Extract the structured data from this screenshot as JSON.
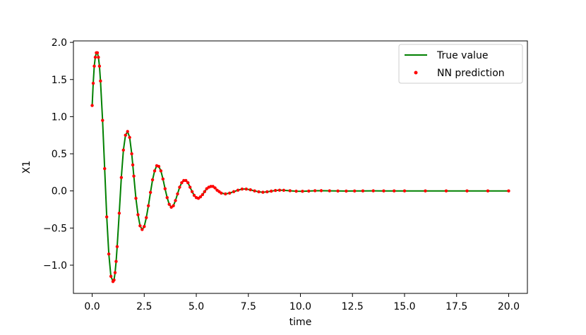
{
  "chart_data": {
    "type": "line",
    "title": "",
    "xlabel": "time",
    "ylabel": "X1",
    "xlim": [
      -0.9,
      20.9
    ],
    "ylim": [
      -1.38,
      2.02
    ],
    "x_ticks": [
      {
        "value": 0.0,
        "label": "0.0"
      },
      {
        "value": 2.5,
        "label": "2.5"
      },
      {
        "value": 5.0,
        "label": "5.0"
      },
      {
        "value": 7.5,
        "label": "7.5"
      },
      {
        "value": 10.0,
        "label": "10.0"
      },
      {
        "value": 12.5,
        "label": "12.5"
      },
      {
        "value": 15.0,
        "label": "15.0"
      },
      {
        "value": 17.5,
        "label": "17.5"
      },
      {
        "value": 20.0,
        "label": "20.0"
      }
    ],
    "y_ticks": [
      {
        "value": -1.0,
        "label": "−1.0"
      },
      {
        "value": -0.5,
        "label": "−0.5"
      },
      {
        "value": 0.0,
        "label": "0.0"
      },
      {
        "value": 0.5,
        "label": "0.5"
      },
      {
        "value": 1.0,
        "label": "1.0"
      },
      {
        "value": 1.5,
        "label": "1.5"
      },
      {
        "value": 2.0,
        "label": "2.0"
      }
    ],
    "grid": false,
    "legend_position": "top-right",
    "series": [
      {
        "name": "True value",
        "kind": "line",
        "color": "#008000",
        "x": [
          0.0,
          0.05,
          0.1,
          0.15,
          0.2,
          0.25,
          0.3,
          0.35,
          0.4,
          0.5,
          0.6,
          0.7,
          0.8,
          0.9,
          1.0,
          1.05,
          1.1,
          1.15,
          1.2,
          1.3,
          1.4,
          1.5,
          1.6,
          1.7,
          1.8,
          1.9,
          1.95,
          2.0,
          2.1,
          2.2,
          2.3,
          2.4,
          2.5,
          2.6,
          2.7,
          2.8,
          2.9,
          3.0,
          3.1,
          3.2,
          3.3,
          3.4,
          3.5,
          3.6,
          3.7,
          3.8,
          3.9,
          4.0,
          4.1,
          4.2,
          4.3,
          4.4,
          4.5,
          4.6,
          4.7,
          4.8,
          4.9,
          5.0,
          5.1,
          5.2,
          5.3,
          5.4,
          5.5,
          5.6,
          5.7,
          5.8,
          5.9,
          6.0,
          6.1,
          6.2,
          6.4,
          6.6,
          6.8,
          7.0,
          7.2,
          7.4,
          7.6,
          7.8,
          8.0,
          8.2,
          8.4,
          8.6,
          8.8,
          9.0,
          9.2,
          9.5,
          9.8,
          10.1,
          10.4,
          10.7,
          11.0,
          11.4,
          11.8,
          12.2,
          12.6,
          13.0,
          13.5,
          14.0,
          14.5,
          15.0,
          16.0,
          17.0,
          18.0,
          19.0,
          20.0
        ],
        "y": [
          1.15,
          1.45,
          1.68,
          1.8,
          1.86,
          1.86,
          1.8,
          1.68,
          1.48,
          0.95,
          0.3,
          -0.35,
          -0.85,
          -1.15,
          -1.22,
          -1.2,
          -1.1,
          -0.95,
          -0.75,
          -0.3,
          0.18,
          0.55,
          0.75,
          0.8,
          0.72,
          0.5,
          0.35,
          0.2,
          -0.1,
          -0.32,
          -0.47,
          -0.52,
          -0.48,
          -0.36,
          -0.2,
          -0.02,
          0.15,
          0.27,
          0.34,
          0.33,
          0.27,
          0.16,
          0.03,
          -0.09,
          -0.18,
          -0.22,
          -0.2,
          -0.13,
          -0.04,
          0.05,
          0.11,
          0.14,
          0.14,
          0.11,
          0.05,
          -0.01,
          -0.06,
          -0.09,
          -0.1,
          -0.08,
          -0.05,
          -0.01,
          0.03,
          0.05,
          0.06,
          0.06,
          0.04,
          0.01,
          -0.01,
          -0.03,
          -0.04,
          -0.03,
          -0.01,
          0.01,
          0.025,
          0.025,
          0.015,
          0.0,
          -0.012,
          -0.018,
          -0.012,
          -0.003,
          0.006,
          0.01,
          0.008,
          0.002,
          -0.004,
          -0.005,
          -0.002,
          0.002,
          0.003,
          0.001,
          -0.001,
          -0.002,
          -0.001,
          0.0,
          0.001,
          0.0,
          0.0,
          0.0,
          0.0,
          0.0,
          0.0,
          0.0,
          0.0
        ]
      },
      {
        "name": "NN prediction",
        "kind": "scatter",
        "color": "#ff0000",
        "x": [
          0.0,
          0.05,
          0.1,
          0.15,
          0.2,
          0.25,
          0.3,
          0.35,
          0.4,
          0.5,
          0.6,
          0.7,
          0.8,
          0.9,
          1.0,
          1.05,
          1.1,
          1.15,
          1.2,
          1.3,
          1.4,
          1.5,
          1.6,
          1.7,
          1.8,
          1.9,
          1.95,
          2.0,
          2.1,
          2.2,
          2.3,
          2.4,
          2.5,
          2.6,
          2.7,
          2.8,
          2.9,
          3.0,
          3.1,
          3.2,
          3.3,
          3.4,
          3.5,
          3.6,
          3.7,
          3.8,
          3.9,
          4.0,
          4.1,
          4.2,
          4.3,
          4.4,
          4.5,
          4.6,
          4.7,
          4.8,
          4.9,
          5.0,
          5.1,
          5.2,
          5.3,
          5.4,
          5.5,
          5.6,
          5.7,
          5.8,
          5.9,
          6.0,
          6.1,
          6.2,
          6.4,
          6.6,
          6.8,
          7.0,
          7.2,
          7.4,
          7.6,
          7.8,
          8.0,
          8.2,
          8.4,
          8.6,
          8.8,
          9.0,
          9.2,
          9.5,
          9.8,
          10.1,
          10.4,
          10.7,
          11.0,
          11.4,
          11.8,
          12.2,
          12.6,
          13.0,
          13.5,
          14.0,
          14.5,
          15.0,
          16.0,
          17.0,
          18.0,
          19.0,
          20.0
        ],
        "y": [
          1.15,
          1.45,
          1.68,
          1.8,
          1.86,
          1.86,
          1.8,
          1.68,
          1.48,
          0.95,
          0.3,
          -0.35,
          -0.85,
          -1.15,
          -1.22,
          -1.2,
          -1.1,
          -0.95,
          -0.75,
          -0.3,
          0.18,
          0.55,
          0.75,
          0.8,
          0.72,
          0.5,
          0.35,
          0.2,
          -0.1,
          -0.32,
          -0.47,
          -0.52,
          -0.48,
          -0.36,
          -0.2,
          -0.02,
          0.15,
          0.27,
          0.34,
          0.33,
          0.27,
          0.16,
          0.03,
          -0.09,
          -0.18,
          -0.22,
          -0.2,
          -0.13,
          -0.04,
          0.05,
          0.11,
          0.14,
          0.14,
          0.11,
          0.05,
          -0.01,
          -0.06,
          -0.09,
          -0.1,
          -0.08,
          -0.05,
          -0.01,
          0.03,
          0.05,
          0.06,
          0.06,
          0.04,
          0.01,
          -0.01,
          -0.03,
          -0.04,
          -0.03,
          -0.01,
          0.01,
          0.025,
          0.025,
          0.015,
          0.0,
          -0.012,
          -0.018,
          -0.012,
          -0.003,
          0.006,
          0.01,
          0.008,
          0.002,
          -0.004,
          -0.005,
          -0.002,
          0.002,
          0.003,
          0.001,
          -0.001,
          -0.002,
          -0.001,
          0.0,
          0.001,
          0.0,
          0.0,
          0.0,
          0.0,
          0.0,
          0.0,
          0.0,
          0.0
        ]
      }
    ]
  }
}
